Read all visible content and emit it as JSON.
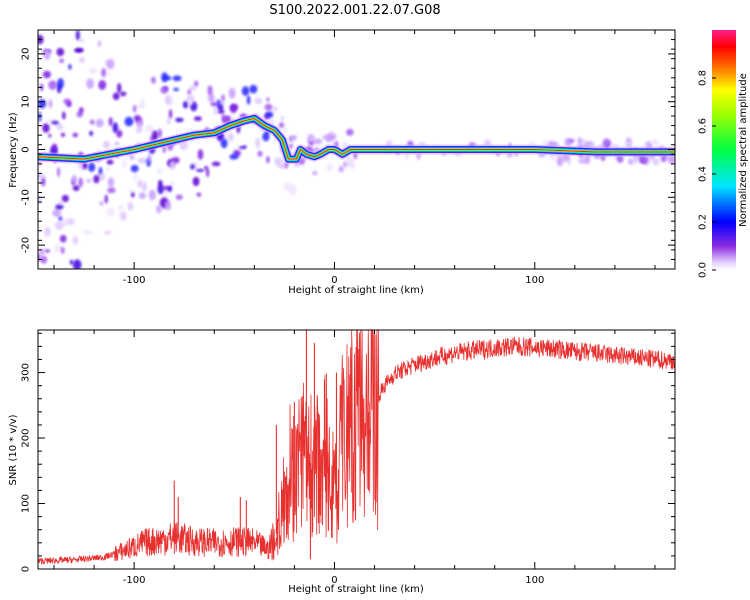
{
  "title": "S100.2022.001.22.07.G08",
  "colors": {
    "snr_line": "#e8302f",
    "ridge_core": "#e8302f",
    "frame": "#000000"
  },
  "chart_data": [
    {
      "type": "heatmap",
      "name": "spectrogram",
      "xlabel": "Height of straight line (km)",
      "ylabel": "Frequency (Hz)",
      "xlim": [
        -148,
        170
      ],
      "ylim": [
        -25,
        25
      ],
      "xticks": [
        -100,
        0,
        100
      ],
      "xtick_labels": [
        "-100",
        "0",
        "100"
      ],
      "yticks": [
        -20,
        -10,
        0,
        10,
        20
      ],
      "ytick_labels": [
        "-20",
        "-10",
        "0",
        "10",
        "20"
      ],
      "colorbar": {
        "label": "Normalized spectral amplitude",
        "range": [
          0,
          1
        ],
        "ticks": [
          0.0,
          0.2,
          0.4,
          0.6,
          0.8
        ],
        "tick_labels": [
          "0.0",
          "0.2",
          "0.4",
          "0.6",
          "0.8"
        ]
      },
      "dominant_frequency_track": [
        {
          "x": -148,
          "y": -1.5
        },
        {
          "x": -125,
          "y": -2
        },
        {
          "x": -100,
          "y": 0
        },
        {
          "x": -85,
          "y": 1.5
        },
        {
          "x": -70,
          "y": 3
        },
        {
          "x": -60,
          "y": 3.5
        },
        {
          "x": -52,
          "y": 5
        },
        {
          "x": -45,
          "y": 6
        },
        {
          "x": -40,
          "y": 6.5
        },
        {
          "x": -35,
          "y": 5
        },
        {
          "x": -30,
          "y": 4
        },
        {
          "x": -26,
          "y": 2
        },
        {
          "x": -23,
          "y": -2
        },
        {
          "x": -19,
          "y": -2
        },
        {
          "x": -17,
          "y": 0
        },
        {
          "x": -14,
          "y": -1
        },
        {
          "x": -10,
          "y": -1.5
        },
        {
          "x": -7,
          "y": -1
        },
        {
          "x": -5,
          "y": -0.5
        },
        {
          "x": -3,
          "y": 0
        },
        {
          "x": 0,
          "y": 0
        },
        {
          "x": 4,
          "y": -1
        },
        {
          "x": 8,
          "y": 0
        },
        {
          "x": 60,
          "y": 0
        },
        {
          "x": 100,
          "y": 0
        },
        {
          "x": 130,
          "y": -0.5
        },
        {
          "x": 170,
          "y": -0.5
        }
      ]
    },
    {
      "type": "line",
      "name": "snr",
      "xlabel": "Height of straight line (km)",
      "ylabel": "SNR (10 * v/v)",
      "xlim": [
        -148,
        170
      ],
      "ylim": [
        0,
        365
      ],
      "xticks": [
        -100,
        0,
        100
      ],
      "xtick_labels": [
        "-100",
        "0",
        "100"
      ],
      "yticks": [
        0,
        100,
        200,
        300
      ],
      "ytick_labels": [
        "0",
        "100",
        "200",
        "300"
      ],
      "envelope": [
        {
          "x": -148,
          "y": 12
        },
        {
          "x": -130,
          "y": 14
        },
        {
          "x": -115,
          "y": 18
        },
        {
          "x": -105,
          "y": 28
        },
        {
          "x": -95,
          "y": 40
        },
        {
          "x": -85,
          "y": 45
        },
        {
          "x": -80,
          "y": 48
        },
        {
          "x": -70,
          "y": 42
        },
        {
          "x": -60,
          "y": 40
        },
        {
          "x": -50,
          "y": 42
        },
        {
          "x": -40,
          "y": 40
        },
        {
          "x": -33,
          "y": 30
        },
        {
          "x": -28,
          "y": 60
        },
        {
          "x": -24,
          "y": 150
        },
        {
          "x": -20,
          "y": 140
        },
        {
          "x": -15,
          "y": 180
        },
        {
          "x": -10,
          "y": 150
        },
        {
          "x": -5,
          "y": 180
        },
        {
          "x": 0,
          "y": 120
        },
        {
          "x": 5,
          "y": 200
        },
        {
          "x": 10,
          "y": 220
        },
        {
          "x": 15,
          "y": 230
        },
        {
          "x": 20,
          "y": 255
        },
        {
          "x": 25,
          "y": 280
        },
        {
          "x": 30,
          "y": 298
        },
        {
          "x": 40,
          "y": 312
        },
        {
          "x": 50,
          "y": 322
        },
        {
          "x": 60,
          "y": 330
        },
        {
          "x": 70,
          "y": 334
        },
        {
          "x": 80,
          "y": 338
        },
        {
          "x": 90,
          "y": 340
        },
        {
          "x": 100,
          "y": 338
        },
        {
          "x": 110,
          "y": 336
        },
        {
          "x": 120,
          "y": 332
        },
        {
          "x": 130,
          "y": 330
        },
        {
          "x": 140,
          "y": 326
        },
        {
          "x": 150,
          "y": 323
        },
        {
          "x": 160,
          "y": 320
        },
        {
          "x": 170,
          "y": 318
        }
      ],
      "spikes": [
        {
          "x": -80,
          "y": 135
        },
        {
          "x": -78,
          "y": 110
        },
        {
          "x": -47,
          "y": 110
        },
        {
          "x": -44,
          "y": 105
        },
        {
          "x": -29,
          "y": 220
        },
        {
          "x": -20,
          "y": 255
        },
        {
          "x": -14,
          "y": 365
        },
        {
          "x": -12,
          "y": 15
        },
        {
          "x": -10,
          "y": 345
        },
        {
          "x": -8,
          "y": 70
        },
        {
          "x": -5,
          "y": 290
        },
        {
          "x": -3,
          "y": 60
        },
        {
          "x": 1,
          "y": 300
        },
        {
          "x": 2,
          "y": 60
        },
        {
          "x": 17,
          "y": 120
        }
      ]
    }
  ]
}
